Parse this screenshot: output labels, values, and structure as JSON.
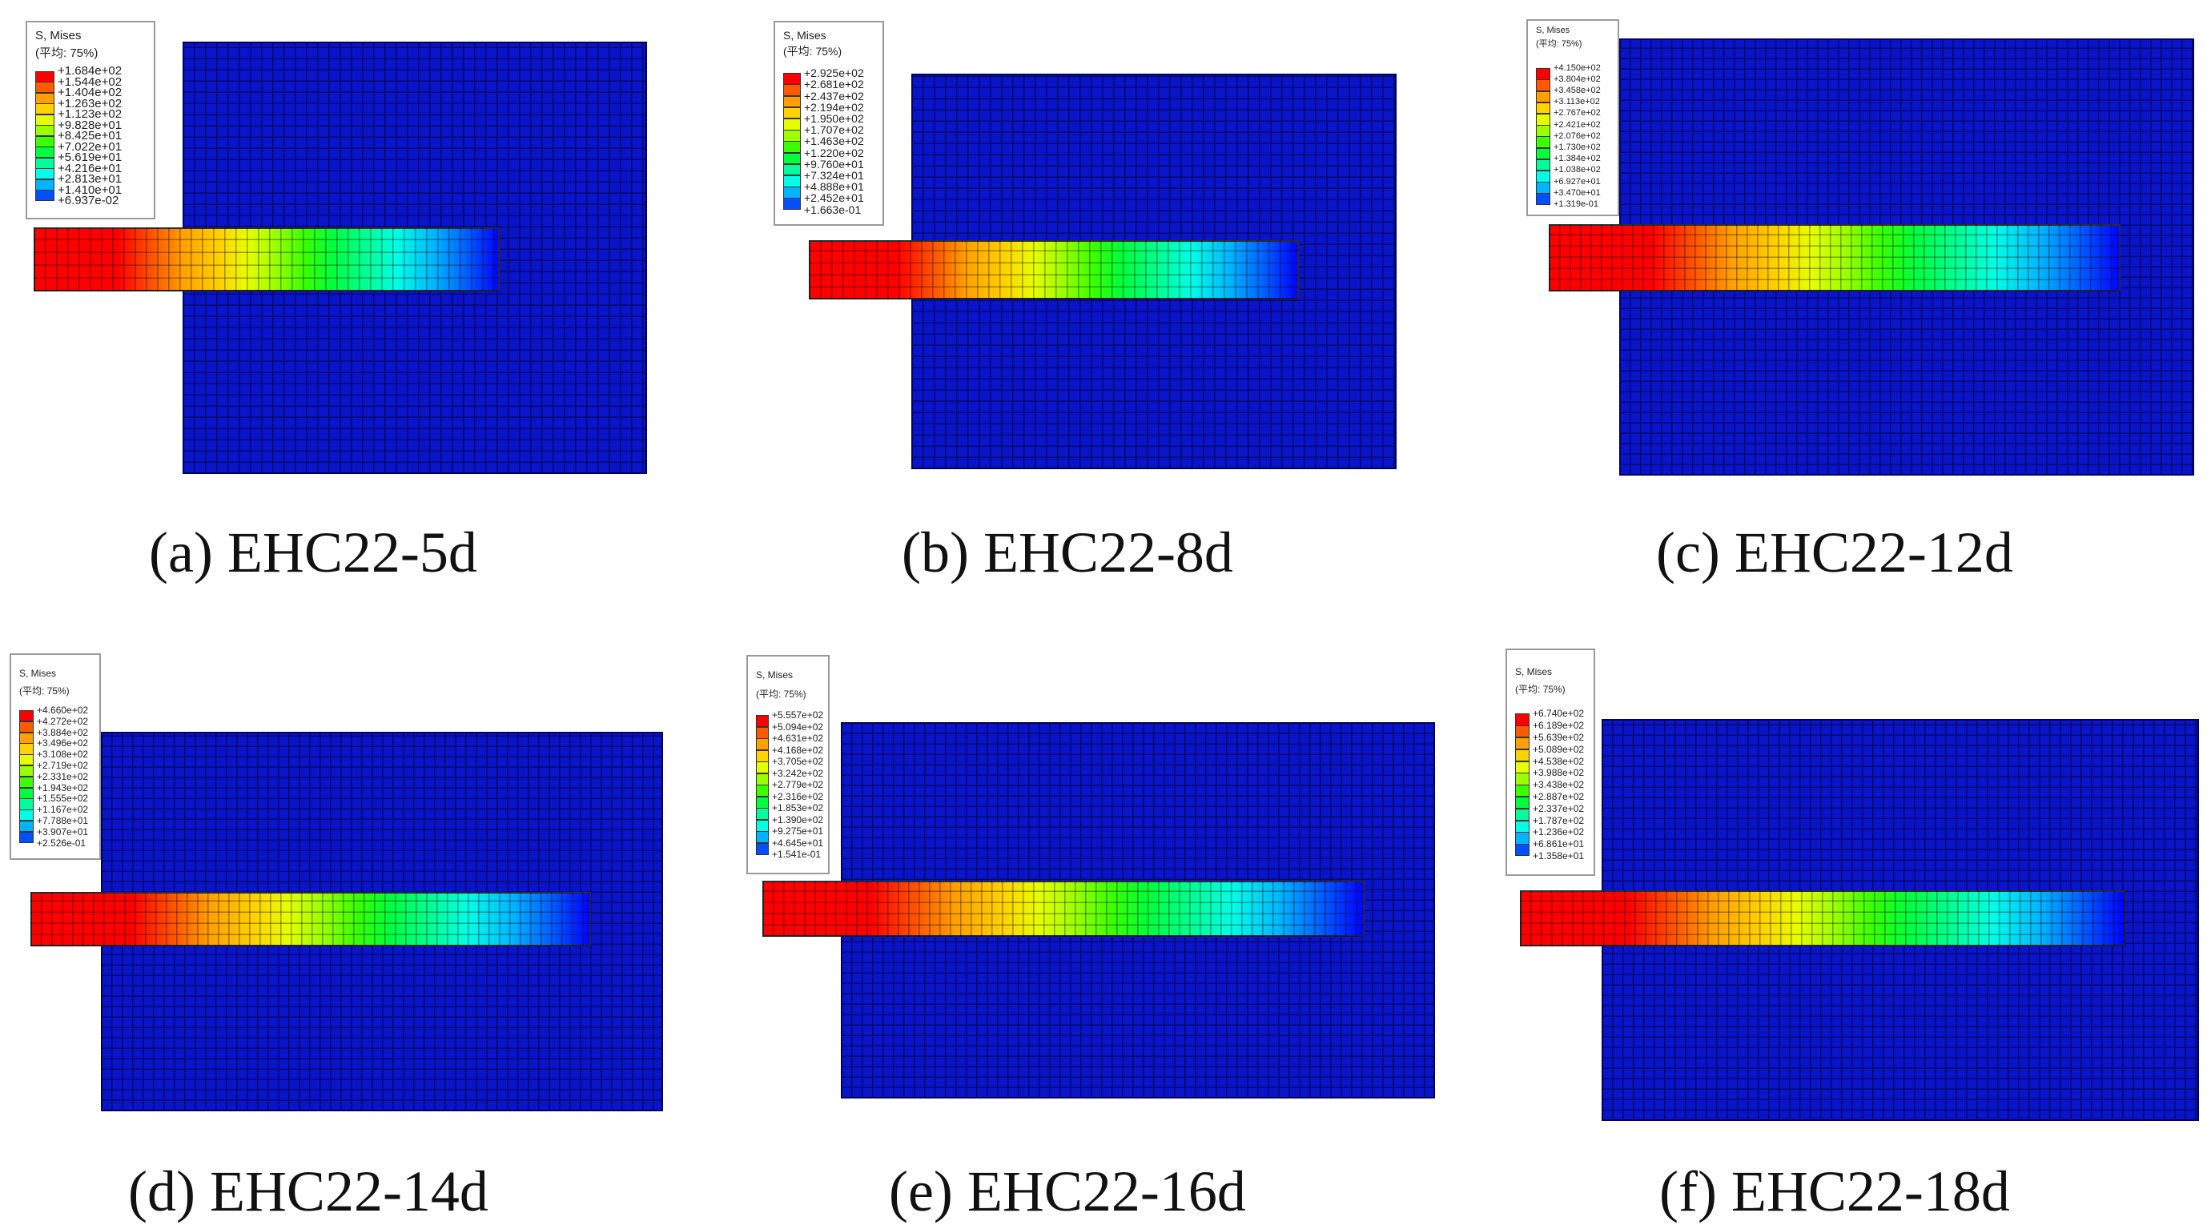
{
  "legend_colors": [
    "#ff0000",
    "#ff5a00",
    "#ffa000",
    "#ffd200",
    "#e6ff00",
    "#9bff00",
    "#3cff00",
    "#00ff3c",
    "#00ff9b",
    "#00ffe6",
    "#00b4ff",
    "#0050ff",
    "#0000ff"
  ],
  "panels": [
    {
      "caption": "(a) EHC22-5d",
      "legend": {
        "title": "S, Mises",
        "subtitle": "(平均: 75%)",
        "values": [
          "+1.684e+02",
          "+1.544e+02",
          "+1.404e+02",
          "+1.263e+02",
          "+1.123e+02",
          "+9.828e+01",
          "+8.425e+01",
          "+7.022e+01",
          "+5.619e+01",
          "+4.216e+01",
          "+2.813e+01",
          "+1.410e+01",
          "+6.937e-02"
        ]
      }
    },
    {
      "caption": "(b) EHC22-8d",
      "legend": {
        "title": "S, Mises",
        "subtitle": "(平均: 75%)",
        "values": [
          "+2.925e+02",
          "+2.681e+02",
          "+2.437e+02",
          "+2.194e+02",
          "+1.950e+02",
          "+1.707e+02",
          "+1.463e+02",
          "+1.220e+02",
          "+9.760e+01",
          "+7.324e+01",
          "+4.888e+01",
          "+2.452e+01",
          "+1.663e-01"
        ]
      }
    },
    {
      "caption": "(c) EHC22-12d",
      "legend": {
        "title": "S, Mises",
        "subtitle": "(平均: 75%)",
        "values": [
          "+4.150e+02",
          "+3.804e+02",
          "+3.458e+02",
          "+3.113e+02",
          "+2.767e+02",
          "+2.421e+02",
          "+2.076e+02",
          "+1.730e+02",
          "+1.384e+02",
          "+1.038e+02",
          "+6.927e+01",
          "+3.470e+01",
          "+1.319e-01"
        ]
      }
    },
    {
      "caption": "(d) EHC22-14d",
      "legend": {
        "title": "S, Mises",
        "subtitle": "(平均: 75%)",
        "values": [
          "+4.660e+02",
          "+4.272e+02",
          "+3.884e+02",
          "+3.496e+02",
          "+3.108e+02",
          "+2.719e+02",
          "+2.331e+02",
          "+1.943e+02",
          "+1.555e+02",
          "+1.167e+02",
          "+7.788e+01",
          "+3.907e+01",
          "+2.526e-01"
        ]
      }
    },
    {
      "caption": "(e) EHC22-16d",
      "legend": {
        "title": "S, Mises",
        "subtitle": "(平均: 75%)",
        "values": [
          "+5.557e+02",
          "+5.094e+02",
          "+4.631e+02",
          "+4.168e+02",
          "+3.705e+02",
          "+3.242e+02",
          "+2.779e+02",
          "+2.316e+02",
          "+1.853e+02",
          "+1.390e+02",
          "+9.275e+01",
          "+4.645e+01",
          "+1.541e-01"
        ]
      }
    },
    {
      "caption": "(f) EHC22-18d",
      "legend": {
        "title": "S, Mises",
        "subtitle": "(平均: 75%)",
        "values": [
          "+6.740e+02",
          "+6.189e+02",
          "+5.639e+02",
          "+5.089e+02",
          "+4.538e+02",
          "+3.988e+02",
          "+3.438e+02",
          "+2.887e+02",
          "+2.337e+02",
          "+1.787e+02",
          "+1.236e+02",
          "+6.861e+01",
          "+1.358e+01"
        ]
      }
    }
  ]
}
